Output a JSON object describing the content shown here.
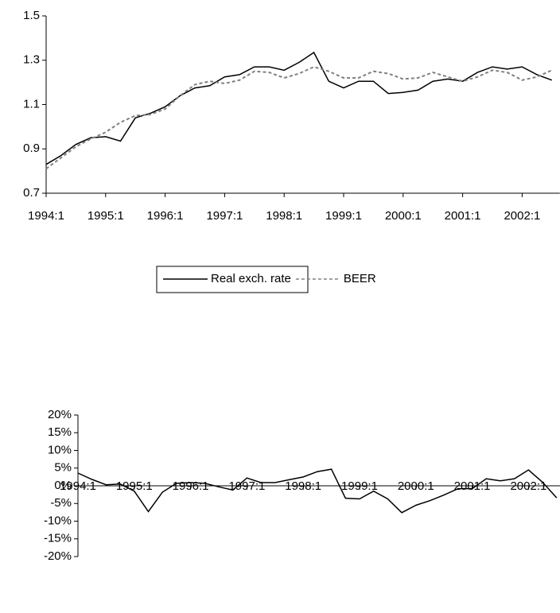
{
  "chart_data": [
    {
      "type": "line",
      "categories": [
        "1994:1",
        null,
        null,
        null,
        "1995:1",
        null,
        null,
        null,
        "1996:1",
        null,
        null,
        null,
        "1997:1",
        null,
        null,
        null,
        "1998:1",
        null,
        null,
        null,
        "1999:1",
        null,
        null,
        null,
        "2000:1",
        null,
        null,
        null,
        "2001:1",
        null,
        null,
        null,
        "2002:1",
        null,
        null
      ],
      "series": [
        {
          "name": "Real exch. rate",
          "color": "#000000",
          "dashed": false,
          "values": [
            0.83,
            0.87,
            0.92,
            0.95,
            0.955,
            0.935,
            1.04,
            1.06,
            1.09,
            1.14,
            1.175,
            1.185,
            1.225,
            1.235,
            1.27,
            1.27,
            1.255,
            1.29,
            1.335,
            1.205,
            1.175,
            1.205,
            1.205,
            1.15,
            1.155,
            1.165,
            1.205,
            1.215,
            1.205,
            1.245,
            1.27,
            1.26,
            1.27,
            1.235,
            1.21
          ]
        },
        {
          "name": "BEER",
          "color": "#808080",
          "dashed": true,
          "values": [
            0.81,
            0.86,
            0.91,
            0.945,
            0.975,
            1.02,
            1.05,
            1.055,
            1.08,
            1.14,
            1.19,
            1.205,
            1.195,
            1.21,
            1.25,
            1.245,
            1.22,
            1.24,
            1.27,
            1.25,
            1.22,
            1.22,
            1.25,
            1.24,
            1.215,
            1.22,
            1.245,
            1.225,
            1.205,
            1.225,
            1.255,
            1.245,
            1.21,
            1.225,
            1.255
          ]
        }
      ],
      "ylim": [
        0.7,
        1.5
      ],
      "yticks": [
        0.7,
        0.9,
        1.1,
        1.3,
        1.5
      ]
    },
    {
      "type": "line",
      "categories": [
        "1994:1",
        null,
        null,
        null,
        "1995:1",
        null,
        null,
        null,
        "1996:1",
        null,
        null,
        null,
        "1997:1",
        null,
        null,
        null,
        "1998:1",
        null,
        null,
        null,
        "1999:1",
        null,
        null,
        null,
        "2000:1",
        null,
        null,
        null,
        "2001:1",
        null,
        null,
        null,
        "2002:1",
        null,
        null
      ],
      "series": [
        {
          "color": "#000000",
          "dashed": false,
          "values": [
            3.6,
            1.8,
            0.3,
            0.5,
            -1.5,
            -7.3,
            -1.8,
            0.7,
            0.9,
            0.7,
            -0.3,
            -1.2,
            2.2,
            0.9,
            0.9,
            1.7,
            2.5,
            4,
            4.7,
            -3.5,
            -3.7,
            -1.5,
            -3.7,
            -7.6,
            -5.5,
            -4.2,
            -2.6,
            -0.8,
            -0.8,
            2,
            1.4,
            2,
            4.5,
            1,
            -3.4
          ]
        }
      ],
      "ylim": [
        -20,
        20
      ],
      "yticks": [
        {
          "value": -20,
          "label": "-20%"
        },
        {
          "value": -15,
          "label": "-15%"
        },
        {
          "value": -10,
          "label": "-10%"
        },
        {
          "value": -5,
          "label": "-5%"
        },
        {
          "value": 0,
          "label": "0%"
        },
        {
          "value": 5,
          "label": "5%"
        },
        {
          "value": 10,
          "label": "10%"
        },
        {
          "value": 15,
          "label": "15%"
        },
        {
          "value": 20,
          "label": "20%"
        }
      ]
    }
  ]
}
